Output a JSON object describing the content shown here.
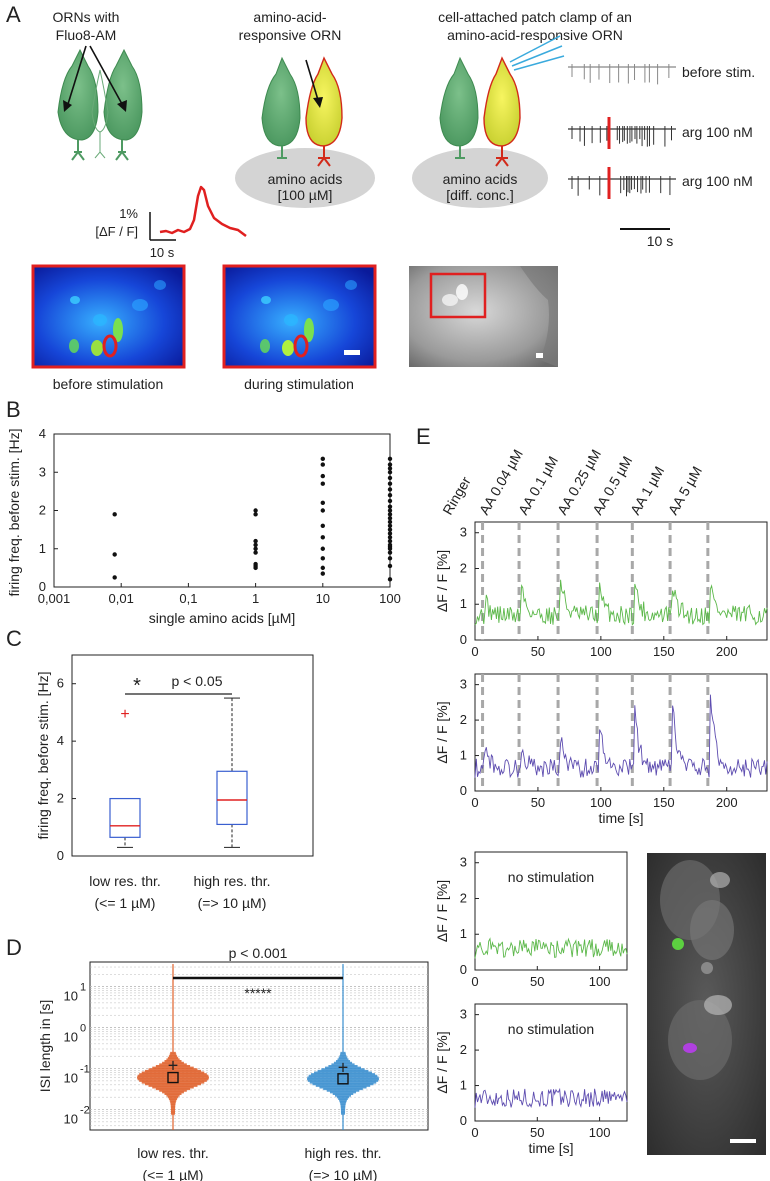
{
  "panel_labels": {
    "a": "A",
    "b": "B",
    "c": "C",
    "d": "D",
    "e": "E"
  },
  "colors": {
    "green": "#5cb84a",
    "purple": "#5e4db0",
    "red": "#e02020",
    "orange": "#e0602a",
    "blue": "#3a8fd0",
    "grey": "#a8a8a8"
  },
  "panel_a": {
    "title1": [
      "ORNs with",
      "Fluo8-AM"
    ],
    "title2": [
      "amino-acid-",
      "responsive ORN"
    ],
    "title3": [
      "cell-attached patch clamp of an",
      "amino-acid-responsive ORN"
    ],
    "disc2": [
      "amino acids",
      "[100 µM]"
    ],
    "disc3": [
      "amino acids",
      "[diff. conc.]"
    ],
    "scale_y": "1%",
    "scale_y2": "[ΔF / F]",
    "scale_x": "10 s",
    "trace_labels": [
      "before stim.",
      "arg 100 nM",
      "arg 100 nM"
    ],
    "trace_scale": "10 s",
    "image_captions": [
      "before stimulation",
      "during stimulation"
    ]
  },
  "chart_data": [
    {
      "id": "B",
      "type": "scatter",
      "xlabel": "single amino acids [µM]",
      "ylabel": "firing freq. before stim. [Hz]",
      "xscale": "log",
      "xticks": [
        "0,001",
        "0,01",
        "0,1",
        "1",
        "10",
        "100"
      ],
      "yticks": [
        "0",
        "1",
        "2",
        "3",
        "4"
      ],
      "ylim": [
        0,
        4
      ],
      "series": [
        {
          "x": 0.008,
          "values": [
            0.25,
            0.85,
            1.9
          ]
        },
        {
          "x": 1,
          "values": [
            0.5,
            0.55,
            0.6,
            0.9,
            1.0,
            1.1,
            1.2,
            1.9,
            2.0
          ]
        },
        {
          "x": 10,
          "values": [
            0.35,
            0.5,
            0.75,
            1.0,
            1.3,
            1.6,
            2.0,
            2.2,
            2.7,
            2.9,
            3.2,
            3.35
          ]
        },
        {
          "x": 100,
          "values": [
            0.2,
            0.55,
            0.75,
            0.9,
            1.0,
            1.05,
            1.1,
            1.2,
            1.3,
            1.4,
            1.5,
            1.6,
            1.7,
            1.8,
            1.9,
            2.0,
            2.1,
            2.25,
            2.4,
            2.55,
            2.7,
            2.85,
            3.0,
            3.1,
            3.2,
            3.35
          ]
        }
      ]
    },
    {
      "id": "C",
      "type": "box",
      "ylabel": "firing freq. before stim. [Hz]",
      "yticks": [
        "0",
        "2",
        "4",
        "6"
      ],
      "ylim": [
        0,
        7
      ],
      "categories": [
        "low res. thr.",
        "high res. thr."
      ],
      "sublabels": [
        "(<= 1 µM)",
        "(=> 10 µM)"
      ],
      "boxes": [
        {
          "min": 0.3,
          "q1": 0.65,
          "median": 1.05,
          "q3": 2.0,
          "max": 2.0,
          "outliers": [
            4.95
          ]
        },
        {
          "min": 0.3,
          "q1": 1.1,
          "median": 1.95,
          "q3": 2.95,
          "max": 5.5,
          "outliers": []
        }
      ],
      "significance": {
        "star": "*",
        "text": "p < 0.05"
      }
    },
    {
      "id": "D",
      "type": "violin",
      "ylabel": "ISI length in [s]",
      "yticks": [
        {
          "base": "10",
          "exp": "1"
        },
        {
          "base": "10",
          "exp": "0"
        },
        {
          "base": "10",
          "exp": "-1"
        },
        {
          "base": "10",
          "exp": "-2"
        }
      ],
      "ylim_log": [
        -2.5,
        1.6
      ],
      "categories": [
        "low res. thr.",
        "high res. thr."
      ],
      "sublabels": [
        "(<= 1 µM)",
        "(=> 10 µM)"
      ],
      "medians_log": [
        -1.22,
        -1.25
      ],
      "means_log": [
        -0.93,
        -0.98
      ],
      "significance": {
        "stars": "*****",
        "text": "p < 0.001"
      }
    },
    {
      "id": "E1",
      "type": "line",
      "ylabel": "ΔF / F [%]",
      "xlim": [
        0,
        232
      ],
      "ylim": [
        0,
        3.3
      ],
      "xticks": [
        "0",
        "50",
        "100",
        "150",
        "200"
      ],
      "yticks": [
        "0",
        "1",
        "2",
        "3"
      ],
      "stim_times": [
        6,
        35,
        66,
        97,
        125,
        155,
        185
      ],
      "stim_labels": [
        "Ringer",
        "AA 0.04 µM",
        "AA  0.1 µM",
        "AA 0.25 µM",
        "AA  0.5 µM",
        "AA   1 µM",
        "AA   5 µM"
      ],
      "peaks": [
        1.1,
        1.55,
        1.75,
        1.4,
        1.6,
        1.55,
        1.6
      ],
      "baseline": 0.7
    },
    {
      "id": "E2",
      "type": "line",
      "ylabel": "ΔF / F [%]",
      "xlabel": "time [s]",
      "xlim": [
        0,
        232
      ],
      "ylim": [
        0,
        3.3
      ],
      "xticks": [
        "0",
        "50",
        "100",
        "150",
        "200"
      ],
      "yticks": [
        "0",
        "1",
        "2",
        "3"
      ],
      "stim_times": [
        6,
        35,
        66,
        97,
        125,
        155,
        185
      ],
      "peaks": [
        1.4,
        1.3,
        1.5,
        2.0,
        2.3,
        2.4,
        2.9
      ],
      "baseline": 0.65
    },
    {
      "id": "E3",
      "type": "line",
      "ylabel": "ΔF / F [%]",
      "annotation": "no stimulation",
      "xlim": [
        0,
        122
      ],
      "ylim": [
        0,
        3.3
      ],
      "xticks": [
        "0",
        "50",
        "100"
      ],
      "yticks": [
        "0",
        "1",
        "2",
        "3"
      ],
      "baseline": 0.6
    },
    {
      "id": "E4",
      "type": "line",
      "ylabel": "ΔF / F [%]",
      "xlabel": "time [s]",
      "annotation": "no stimulation",
      "xlim": [
        0,
        122
      ],
      "ylim": [
        0,
        3.3
      ],
      "xticks": [
        "0",
        "50",
        "100"
      ],
      "yticks": [
        "0",
        "1",
        "2",
        "3"
      ],
      "baseline": 0.65
    }
  ]
}
